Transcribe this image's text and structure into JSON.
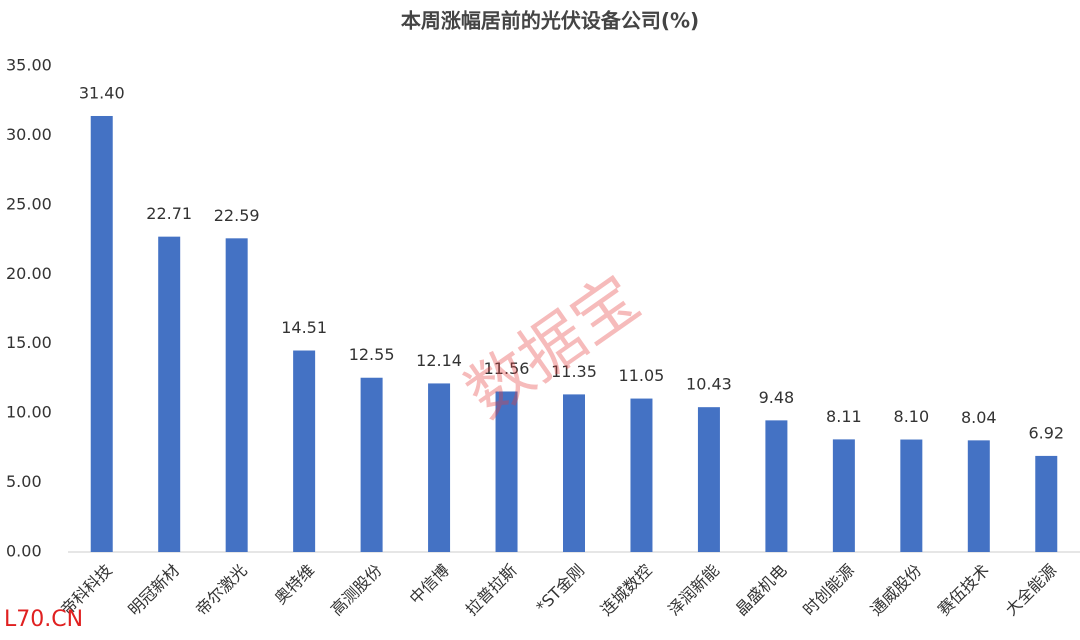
{
  "chart_data": {
    "type": "bar",
    "title": "本周涨幅居前的光伏设备公司(%)",
    "categories": [
      "帝科科技",
      "明冠新材",
      "帝尔激光",
      "奥特维",
      "高测股份",
      "中信博",
      "拉普拉斯",
      "*ST金刚",
      "连城数控",
      "泽润新能",
      "晶盛机电",
      "时创能源",
      "通威股份",
      "赛伍技术",
      "大全能源"
    ],
    "values": [
      31.4,
      22.71,
      22.59,
      14.51,
      12.55,
      12.14,
      11.56,
      11.35,
      11.05,
      10.43,
      9.48,
      8.11,
      8.1,
      8.04,
      6.92
    ],
    "value_labels": [
      "31.40",
      "22.71",
      "22.59",
      "14.51",
      "12.55",
      "12.14",
      "11.56",
      "11.35",
      "11.05",
      "10.43",
      "9.48",
      "8.11",
      "8.10",
      "8.04",
      "6.92"
    ],
    "color": "#4472c4",
    "ylim": [
      0,
      35
    ],
    "yticks": [
      {
        "value": 0,
        "label": "0.00"
      },
      {
        "value": 5,
        "label": "5.00"
      },
      {
        "value": 10,
        "label": "10.00"
      },
      {
        "value": 15,
        "label": "15.00"
      },
      {
        "value": 20,
        "label": "20.00"
      },
      {
        "value": 25,
        "label": "25.00"
      },
      {
        "value": 30,
        "label": "30.00"
      },
      {
        "value": 35,
        "label": "35.00"
      }
    ],
    "grid": false,
    "watermark": "数据宝",
    "source_mark": "L70.CN"
  }
}
